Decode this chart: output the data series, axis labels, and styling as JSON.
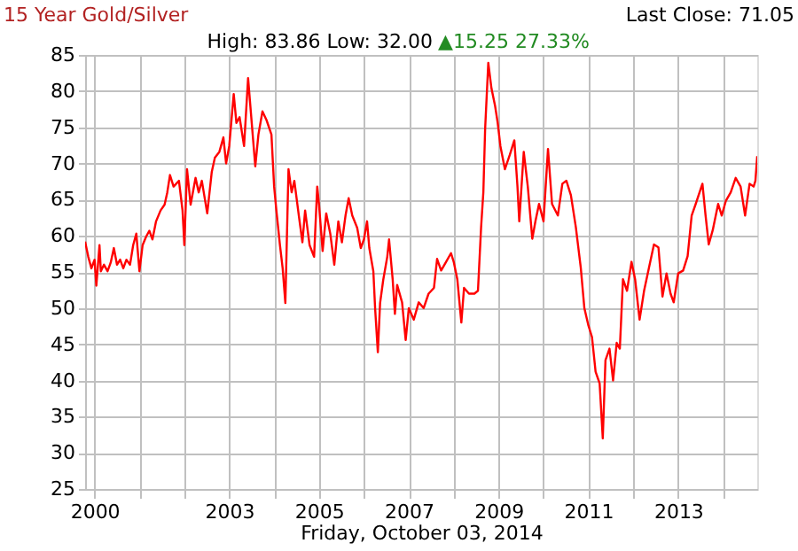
{
  "chart_data": {
    "type": "line",
    "title": "15 Year Gold/Silver",
    "subtitle": "High: 83.86 Low: 32.00",
    "xlabel": "Friday, October 03, 2014",
    "annotations": [
      "Last Close: 71.05",
      "▲15.25 27.33%"
    ],
    "x": [
      1999.79,
      1999.86,
      1999.93,
      2000.0,
      2000.04,
      2000.11,
      2000.14,
      2000.21,
      2000.29,
      2000.36,
      2000.43,
      2000.5,
      2000.57,
      2000.64,
      2000.71,
      2000.79,
      2000.86,
      2000.93,
      2001.0,
      2001.07,
      2001.15,
      2001.22,
      2001.29,
      2001.37,
      2001.47,
      2001.56,
      2001.62,
      2001.68,
      2001.76,
      2001.88,
      2001.96,
      2002.0,
      2002.06,
      2002.14,
      2002.25,
      2002.32,
      2002.39,
      2002.51,
      2002.61,
      2002.68,
      2002.78,
      2002.87,
      2002.93,
      2003.0,
      2003.1,
      2003.16,
      2003.23,
      2003.33,
      2003.42,
      2003.48,
      2003.58,
      2003.65,
      2003.74,
      2003.83,
      2003.94,
      2004.0,
      2004.05,
      2004.13,
      2004.19,
      2004.25,
      2004.32,
      2004.39,
      2004.45,
      2004.55,
      2004.63,
      2004.69,
      2004.79,
      2004.89,
      2004.96,
      2005.0,
      2005.08,
      2005.16,
      2005.25,
      2005.34,
      2005.43,
      2005.51,
      2005.59,
      2005.66,
      2005.74,
      2005.85,
      2005.93,
      2006.0,
      2006.07,
      2006.12,
      2006.21,
      2006.25,
      2006.31,
      2006.36,
      2006.43,
      2006.52,
      2006.56,
      2006.64,
      2006.69,
      2006.74,
      2006.85,
      2006.93,
      2007.0,
      2007.11,
      2007.22,
      2007.33,
      2007.44,
      2007.56,
      2007.63,
      2007.72,
      2007.83,
      2007.94,
      2008.0,
      2008.08,
      2008.17,
      2008.23,
      2008.34,
      2008.46,
      2008.54,
      2008.61,
      2008.66,
      2008.7,
      2008.77,
      2008.84,
      2008.92,
      2008.98,
      2009.04,
      2009.14,
      2009.25,
      2009.35,
      2009.42,
      2009.46,
      2009.56,
      2009.65,
      2009.75,
      2009.82,
      2009.9,
      2010.0,
      2010.1,
      2010.19,
      2010.32,
      2010.42,
      2010.51,
      2010.61,
      2010.72,
      2010.83,
      2010.91,
      2011.0,
      2011.08,
      2011.16,
      2011.25,
      2011.32,
      2011.38,
      2011.47,
      2011.55,
      2011.63,
      2011.7,
      2011.77,
      2011.86,
      2011.96,
      2012.04,
      2012.14,
      2012.24,
      2012.35,
      2012.46,
      2012.56,
      2012.65,
      2012.74,
      2012.83,
      2012.9,
      2013.0,
      2013.11,
      2013.21,
      2013.3,
      2013.39,
      2013.54,
      2013.61,
      2013.68,
      2013.77,
      2013.89,
      2013.97,
      2014.06,
      2014.17,
      2014.28,
      2014.39,
      2014.49,
      2014.59,
      2014.68,
      2014.72,
      2014.76
    ],
    "series": [
      {
        "color": "#ff0000",
        "values": [
          59.2,
          57.1,
          55.5,
          56.7,
          53.1,
          58.7,
          55.1,
          56.0,
          55.1,
          56.3,
          58.3,
          56.0,
          56.7,
          55.5,
          56.7,
          56.0,
          58.7,
          60.3,
          55.1,
          58.7,
          59.9,
          60.7,
          59.5,
          62.0,
          63.5,
          64.3,
          66.0,
          68.4,
          66.8,
          67.6,
          63.5,
          58.7,
          69.2,
          64.3,
          68.0,
          66.0,
          67.6,
          63.1,
          68.8,
          70.8,
          71.6,
          73.6,
          70.0,
          72.4,
          79.6,
          75.6,
          76.4,
          72.4,
          81.8,
          77.2,
          69.6,
          74.0,
          77.2,
          76.0,
          74.0,
          66.8,
          63.5,
          58.7,
          55.5,
          50.7,
          69.2,
          66.0,
          67.6,
          62.8,
          59.1,
          63.5,
          58.7,
          57.1,
          66.8,
          64.3,
          57.9,
          63.1,
          60.3,
          56.0,
          62.0,
          59.1,
          62.8,
          65.2,
          62.8,
          61.1,
          58.3,
          59.5,
          62.0,
          58.3,
          55.1,
          49.9,
          43.9,
          50.7,
          53.9,
          57.1,
          59.5,
          54.0,
          49.2,
          53.2,
          50.8,
          45.6,
          50.0,
          48.4,
          50.8,
          50.0,
          52.0,
          52.8,
          56.8,
          55.2,
          56.4,
          57.6,
          56.4,
          54.0,
          48.0,
          52.8,
          52.0,
          52.0,
          52.4,
          61.2,
          66.0,
          74.8,
          83.9,
          80.4,
          78.0,
          75.6,
          72.4,
          69.2,
          71.2,
          73.2,
          66.8,
          62.0,
          71.6,
          66.8,
          59.6,
          62.0,
          64.4,
          62.0,
          72.0,
          64.4,
          62.8,
          67.2,
          67.6,
          65.6,
          61.2,
          55.6,
          50.0,
          47.6,
          46.0,
          41.2,
          39.6,
          32.0,
          42.8,
          44.4,
          40.0,
          45.2,
          44.4,
          54.0,
          52.4,
          56.4,
          54.0,
          48.4,
          52.4,
          55.6,
          58.8,
          58.4,
          51.6,
          54.8,
          52.0,
          50.8,
          54.8,
          55.2,
          57.2,
          62.8,
          64.4,
          67.2,
          62.8,
          58.8,
          60.8,
          64.4,
          62.8,
          64.8,
          66.0,
          68.0,
          66.8,
          62.8,
          67.2,
          66.8,
          67.6,
          71.0
        ]
      }
    ],
    "xlim": [
      1999.79,
      2014.76
    ],
    "ylim": [
      25,
      85
    ],
    "xticks": [
      2000,
      {
        "value": 2001,
        "label": null
      },
      {
        "value": 2002,
        "label": null
      },
      2003,
      {
        "value": 2004,
        "label": null
      },
      2005,
      {
        "value": 2006,
        "label": null
      },
      2007,
      {
        "value": 2008,
        "label": null
      },
      2009,
      {
        "value": 2010,
        "label": null
      },
      2011,
      {
        "value": 2012,
        "label": null
      },
      2013,
      {
        "value": 2014,
        "label": null
      }
    ],
    "yticks": [
      25,
      30,
      35,
      40,
      45,
      50,
      55,
      60,
      65,
      70,
      75,
      80,
      85
    ],
    "grid": true
  }
}
